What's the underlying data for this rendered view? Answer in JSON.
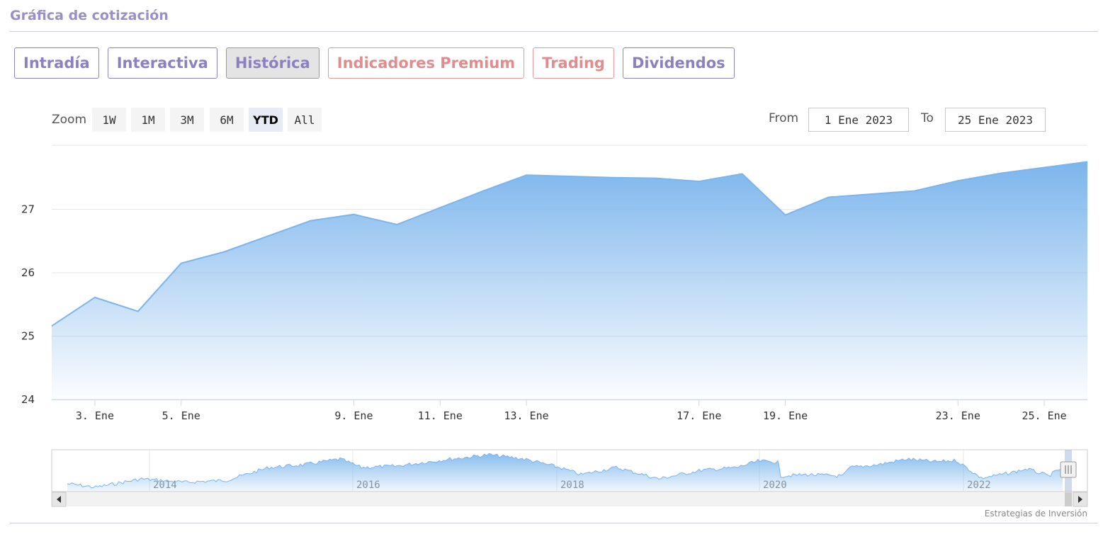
{
  "section": {
    "title": "Gráfica de cotización"
  },
  "tabs": [
    {
      "label": "Intradía",
      "style": "normal"
    },
    {
      "label": "Interactiva",
      "style": "normal"
    },
    {
      "label": "Histórica",
      "style": "active"
    },
    {
      "label": "Indicadores Premium",
      "style": "premium"
    },
    {
      "label": "Trading",
      "style": "premium"
    },
    {
      "label": "Dividendos",
      "style": "normal"
    }
  ],
  "zoom": {
    "label": "Zoom",
    "buttons": [
      "1W",
      "1M",
      "3M",
      "6M",
      "YTD",
      "All"
    ],
    "selected": "YTD"
  },
  "range": {
    "from_label": "From",
    "from_value": "1 Ene 2023",
    "to_label": "To",
    "to_value": "25 Ene 2023"
  },
  "credits": "Estrategias de Inversión",
  "colors": {
    "series": "#7cb5ec",
    "tab_text": "#8c80c0",
    "premium_text": "#e28d8d"
  },
  "chart_data": {
    "type": "area",
    "title": "",
    "xlabel": "",
    "ylabel": "",
    "ylim": [
      24,
      28
    ],
    "xlim": [
      "2023-01-02",
      "2023-01-26"
    ],
    "yticks": [
      24,
      25,
      26,
      27
    ],
    "xticks": [
      {
        "date": "2023-01-03",
        "label": "3. Ene"
      },
      {
        "date": "2023-01-05",
        "label": "5. Ene"
      },
      {
        "date": "2023-01-09",
        "label": "9. Ene"
      },
      {
        "date": "2023-01-11",
        "label": "11. Ene"
      },
      {
        "date": "2023-01-13",
        "label": "13. Ene"
      },
      {
        "date": "2023-01-17",
        "label": "17. Ene"
      },
      {
        "date": "2023-01-19",
        "label": "19. Ene"
      },
      {
        "date": "2023-01-23",
        "label": "23. Ene"
      },
      {
        "date": "2023-01-25",
        "label": "25. Ene"
      }
    ],
    "grid": true,
    "series": [
      {
        "x": [
          "2023-01-02",
          "2023-01-03",
          "2023-01-04",
          "2023-01-05",
          "2023-01-06",
          "2023-01-08",
          "2023-01-09",
          "2023-01-10",
          "2023-01-12",
          "2023-01-13",
          "2023-01-15",
          "2023-01-16",
          "2023-01-17",
          "2023-01-18",
          "2023-01-19",
          "2023-01-20",
          "2023-01-22",
          "2023-01-23",
          "2023-01-24",
          "2023-01-26"
        ],
        "y": [
          25.16,
          25.61,
          25.39,
          26.15,
          26.33,
          26.82,
          26.92,
          26.76,
          27.29,
          27.54,
          27.5,
          27.49,
          27.44,
          27.56,
          26.91,
          27.19,
          27.29,
          27.45,
          27.57,
          27.75
        ]
      }
    ],
    "navigator": {
      "type": "area",
      "x_labels": [
        "2014",
        "2016",
        "2018",
        "2020",
        "2022"
      ]
    }
  }
}
